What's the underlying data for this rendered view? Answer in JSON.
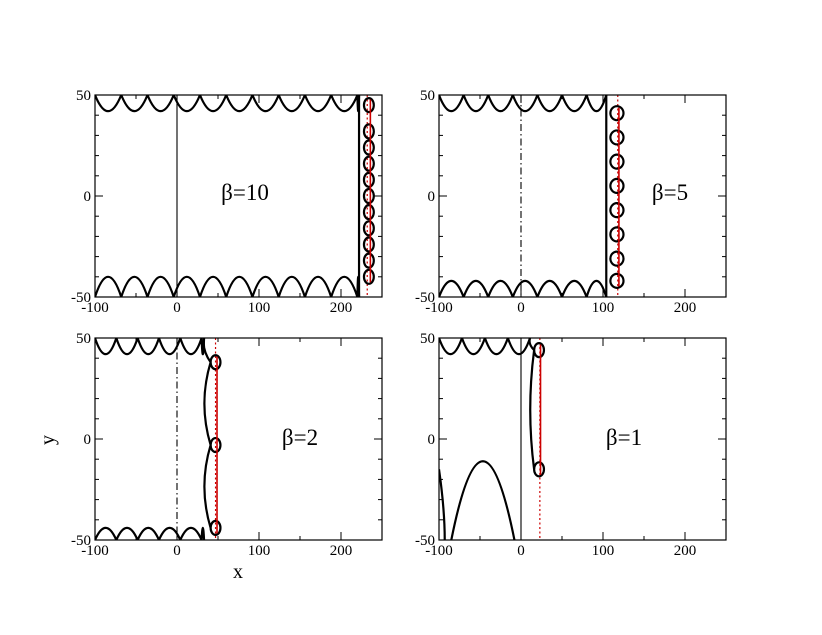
{
  "figure": {
    "xlabel": "x",
    "ylabel": "y",
    "accent_color": "#cc0000"
  },
  "chart_data": [
    {
      "type": "line",
      "annotation": "β=10",
      "xlim": [
        -100,
        250
      ],
      "ylim": [
        -50,
        50
      ],
      "xticks": [
        -100,
        0,
        100,
        200
      ],
      "yticks": [
        -50,
        0,
        50
      ],
      "xtick_labels": [
        "-100",
        "0",
        "100",
        "200"
      ],
      "ytick_labels": [
        "-50",
        "0",
        "50"
      ],
      "vertical_line": {
        "x": 0,
        "style": "solid"
      },
      "red_line_x": 232,
      "wall_x": 222,
      "top_arches": {
        "x_start": -100,
        "x_end": 222,
        "period": 32,
        "dip_y": 42
      },
      "bottom_arches": {
        "x_start": -100,
        "x_end": 222,
        "period": 32,
        "peak_y": -40
      },
      "loops": {
        "x_center": 234,
        "rx": 6,
        "y_centers": [
          45,
          32,
          24,
          16,
          8,
          0,
          -8,
          -16,
          -24,
          -32,
          -40
        ]
      }
    },
    {
      "type": "line",
      "annotation": "β=5",
      "xlim": [
        -100,
        250
      ],
      "ylim": [
        -50,
        50
      ],
      "xticks": [
        -100,
        0,
        100,
        200
      ],
      "yticks": [
        -50,
        0,
        50
      ],
      "xtick_labels": [
        "-100",
        "0",
        "100",
        "200"
      ],
      "ytick_labels": [
        "-50",
        "0",
        "50"
      ],
      "vertical_line": {
        "x": 0,
        "style": "dashdot"
      },
      "red_line_x": 118,
      "wall_x": 104,
      "top_arches": {
        "x_start": -100,
        "x_end": 104,
        "period": 30,
        "dip_y": 42
      },
      "bottom_arches": {
        "x_start": -100,
        "x_end": 104,
        "period": 30,
        "peak_y": -42
      },
      "loops": {
        "x_center": 117,
        "rx": 8,
        "y_centers": [
          41,
          29,
          17,
          5,
          -7,
          -19,
          -31,
          -42
        ]
      }
    },
    {
      "type": "line",
      "annotation": "β=2",
      "xlim": [
        -100,
        250
      ],
      "ylim": [
        -50,
        50
      ],
      "xticks": [
        -100,
        0,
        100,
        200
      ],
      "yticks": [
        -50,
        0,
        50
      ],
      "xtick_labels": [
        "-100",
        "0",
        "100",
        "200"
      ],
      "ytick_labels": [
        "-50",
        "0",
        "50"
      ],
      "vertical_line": {
        "x": 0,
        "style": "dashdot"
      },
      "red_line_x": 47,
      "wall_x": 33,
      "top_arches": {
        "x_start": -100,
        "x_end": 33,
        "period": 26,
        "dip_y": 42
      },
      "bottom_arches": {
        "x_start": -100,
        "x_end": 33,
        "period": 26,
        "peak_y": -44
      },
      "loops": {
        "x_center": 47,
        "rx": 6,
        "y_centers": [
          38,
          -3,
          -44
        ]
      }
    },
    {
      "type": "line",
      "annotation": "β=1",
      "xlim": [
        -100,
        250
      ],
      "ylim": [
        -50,
        50
      ],
      "xticks": [
        -100,
        0,
        100,
        200
      ],
      "yticks": [
        -50,
        0,
        50
      ],
      "xtick_labels": [
        "-100",
        "0",
        "100",
        "200"
      ],
      "ytick_labels": [
        "-50",
        "0",
        "50"
      ],
      "vertical_line": {
        "x": 0,
        "style": "solid"
      },
      "red_line_x": 23,
      "wall_x": 11,
      "top_arches": {
        "x_start": -100,
        "x_end": 11,
        "period": 28,
        "dip_y": 42
      },
      "bottom_arches": null,
      "big_arches": [
        {
          "x_left": -85,
          "x_right": -8,
          "peak_y": -11
        }
      ],
      "tail_line": {
        "x": -108,
        "y_top": -15
      },
      "loops": {
        "x_center": 22,
        "rx": 6,
        "y_centers": [
          44,
          -15
        ]
      }
    }
  ]
}
